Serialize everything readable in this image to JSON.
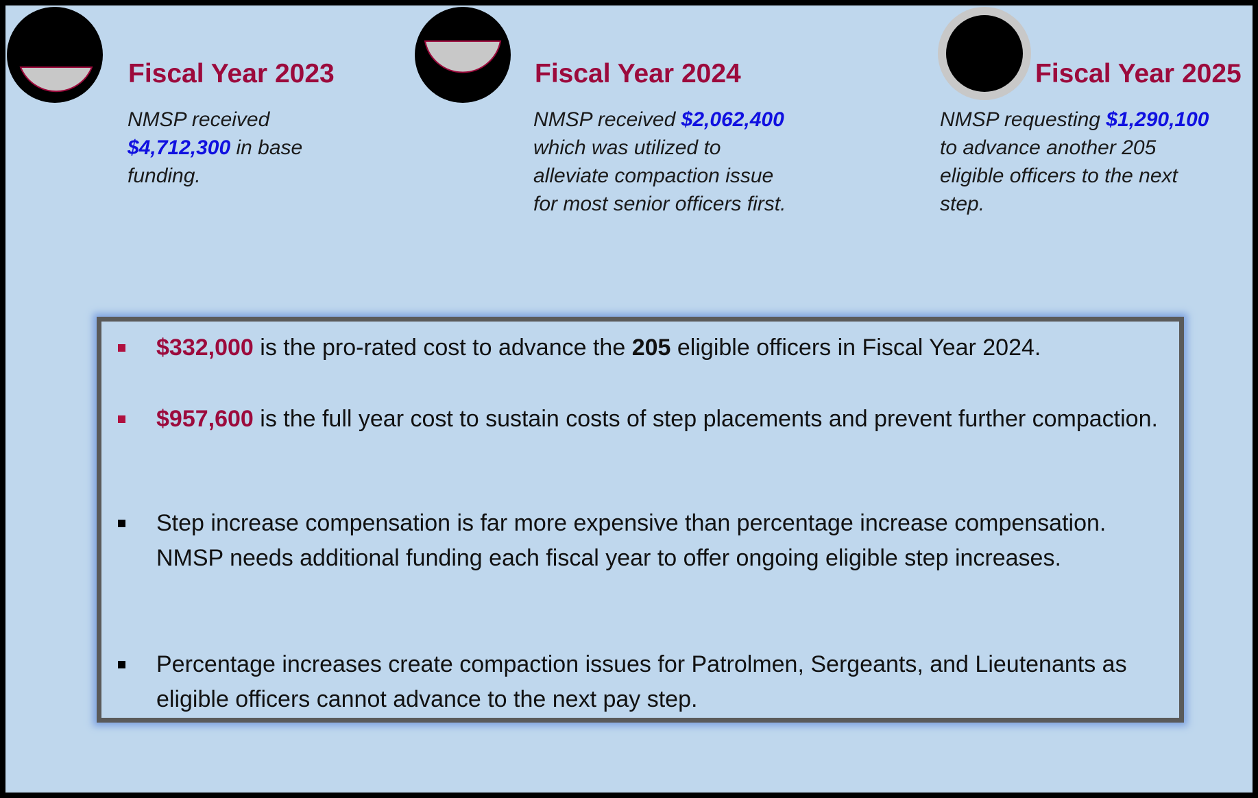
{
  "columns": [
    {
      "title": "Fiscal Year 2023",
      "text": [
        "NMSP received",
        "$4,712,300",
        "in base funding."
      ]
    },
    {
      "title": "Fiscal Year 2024",
      "text": [
        "NMSP received",
        "$2,062,400",
        "which was utilized to alleviate compaction issue for most senior officers first."
      ]
    },
    {
      "title": "Fiscal Year 2025",
      "text": [
        "NMSP requesting",
        "$1,290,100",
        "to advance another 205 eligible officers to the next step."
      ]
    }
  ],
  "bullets": [
    [
      "$332,000",
      "is the pro-rated cost to advance the",
      "205",
      "eligible officers in Fiscal Year 2024."
    ],
    [
      "$957,600",
      "is the full year cost to sustain costs of step placements and prevent further compaction."
    ],
    [
      "Step increase compensation is far more expensive than percentage increase compensation. NMSP needs additional funding each fiscal year to offer ongoing eligible step increases."
    ],
    [
      "Percentage increases create compaction issues for Patrolmen, Sergeants, and Lieutenants as eligible officers cannot advance to the next pay step."
    ]
  ]
}
